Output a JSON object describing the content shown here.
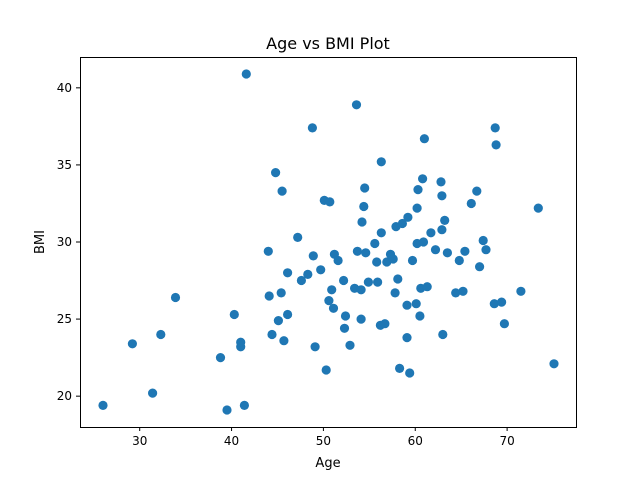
{
  "chart_data": {
    "type": "scatter",
    "title": "Age vs BMI Plot",
    "xlabel": "Age",
    "ylabel": "BMI",
    "xlim": [
      23.5,
      77.5
    ],
    "ylim": [
      18,
      42
    ],
    "xticks": [
      30,
      40,
      50,
      60,
      70
    ],
    "yticks": [
      20,
      25,
      30,
      35,
      40
    ],
    "grid": false,
    "marker_color": "#1f77b4",
    "series": [
      {
        "points": [
          [
            26,
            19.4
          ],
          [
            29.2,
            23.4
          ],
          [
            31.4,
            20.2
          ],
          [
            32.3,
            24.0
          ],
          [
            33.9,
            26.4
          ],
          [
            38.8,
            22.5
          ],
          [
            39.5,
            19.1
          ],
          [
            40.3,
            25.3
          ],
          [
            41.0,
            23.2
          ],
          [
            41.0,
            23.5
          ],
          [
            41.4,
            19.4
          ],
          [
            41.6,
            40.9
          ],
          [
            44.0,
            29.4
          ],
          [
            44.1,
            26.5
          ],
          [
            44.4,
            24.0
          ],
          [
            44.8,
            34.5
          ],
          [
            45.1,
            24.9
          ],
          [
            45.4,
            26.7
          ],
          [
            45.5,
            33.3
          ],
          [
            45.7,
            23.6
          ],
          [
            46.1,
            25.3
          ],
          [
            46.1,
            28.0
          ],
          [
            47.2,
            30.3
          ],
          [
            47.6,
            27.5
          ],
          [
            48.3,
            27.9
          ],
          [
            48.8,
            37.4
          ],
          [
            48.9,
            29.1
          ],
          [
            49.1,
            23.2
          ],
          [
            49.7,
            28.2
          ],
          [
            50.1,
            32.7
          ],
          [
            50.3,
            21.7
          ],
          [
            50.6,
            26.2
          ],
          [
            50.7,
            32.6
          ],
          [
            50.9,
            26.9
          ],
          [
            51.1,
            25.7
          ],
          [
            51.2,
            29.2
          ],
          [
            51.6,
            28.8
          ],
          [
            52.2,
            27.5
          ],
          [
            52.3,
            24.4
          ],
          [
            52.4,
            25.2
          ],
          [
            52.9,
            23.3
          ],
          [
            53.4,
            27.0
          ],
          [
            53.6,
            38.9
          ],
          [
            53.7,
            29.4
          ],
          [
            54.1,
            26.9
          ],
          [
            54.1,
            25.0
          ],
          [
            54.2,
            31.3
          ],
          [
            54.4,
            32.3
          ],
          [
            54.5,
            33.5
          ],
          [
            54.6,
            29.3
          ],
          [
            54.9,
            27.4
          ],
          [
            55.6,
            29.9
          ],
          [
            55.8,
            28.7
          ],
          [
            55.9,
            27.4
          ],
          [
            56.2,
            24.6
          ],
          [
            56.3,
            35.2
          ],
          [
            56.3,
            30.6
          ],
          [
            56.7,
            24.7
          ],
          [
            56.9,
            28.7
          ],
          [
            57.3,
            29.2
          ],
          [
            57.6,
            28.9
          ],
          [
            57.8,
            26.7
          ],
          [
            57.9,
            31.0
          ],
          [
            58.1,
            27.6
          ],
          [
            58.3,
            21.8
          ],
          [
            58.6,
            31.2
          ],
          [
            59.1,
            25.9
          ],
          [
            59.1,
            23.8
          ],
          [
            59.2,
            31.6
          ],
          [
            59.4,
            21.5
          ],
          [
            59.7,
            28.8
          ],
          [
            60.1,
            26.0
          ],
          [
            60.2,
            29.9
          ],
          [
            60.2,
            32.2
          ],
          [
            60.3,
            33.4
          ],
          [
            60.5,
            25.2
          ],
          [
            60.6,
            27.0
          ],
          [
            60.8,
            34.1
          ],
          [
            60.9,
            30.0
          ],
          [
            61.0,
            36.7
          ],
          [
            61.3,
            27.1
          ],
          [
            61.7,
            30.6
          ],
          [
            62.2,
            29.5
          ],
          [
            62.8,
            33.9
          ],
          [
            62.9,
            30.8
          ],
          [
            62.9,
            33.0
          ],
          [
            63.0,
            24.0
          ],
          [
            63.2,
            31.4
          ],
          [
            63.5,
            29.3
          ],
          [
            64.4,
            26.7
          ],
          [
            64.8,
            28.8
          ],
          [
            65.2,
            26.8
          ],
          [
            65.4,
            29.4
          ],
          [
            66.1,
            32.5
          ],
          [
            66.7,
            33.3
          ],
          [
            67.0,
            28.4
          ],
          [
            67.4,
            30.1
          ],
          [
            67.7,
            29.5
          ],
          [
            68.6,
            26.0
          ],
          [
            68.7,
            37.4
          ],
          [
            68.8,
            36.3
          ],
          [
            69.4,
            26.1
          ],
          [
            69.7,
            24.7
          ],
          [
            71.5,
            26.8
          ],
          [
            73.4,
            32.2
          ],
          [
            75.1,
            22.1
          ]
        ]
      }
    ]
  }
}
